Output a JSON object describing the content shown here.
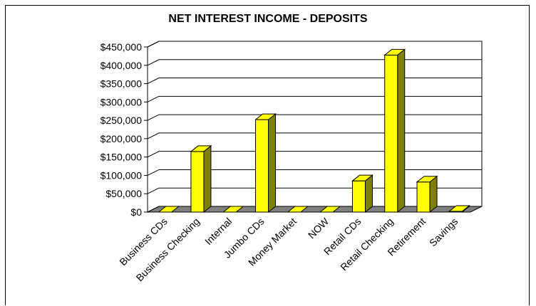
{
  "chart_data": {
    "type": "bar",
    "title": "NET INTEREST INCOME - DEPOSITS",
    "categories": [
      "Business CDs",
      "Business Checking",
      "Internal",
      "Jumbo CDs",
      "Money Market",
      "NOW",
      "Retail CDs",
      "Retail Checking",
      "Retirement",
      "Savings"
    ],
    "values": [
      0,
      165000,
      0,
      252000,
      0,
      0,
      85000,
      428000,
      82000,
      2000
    ],
    "ylim": [
      0,
      450000
    ],
    "ytick_values": [
      0,
      50000,
      100000,
      150000,
      200000,
      250000,
      300000,
      350000,
      400000,
      450000
    ],
    "ytick_labels": [
      "$0",
      "$50,000",
      "$100,000",
      "$150,000",
      "$200,000",
      "$250,000",
      "$300,000",
      "$350,000",
      "$400,000",
      "$450,000"
    ],
    "grid": true,
    "legend": "none",
    "bar_color": "#ffff00",
    "bar_side_color": "#808000",
    "floor_color": "#808080"
  }
}
